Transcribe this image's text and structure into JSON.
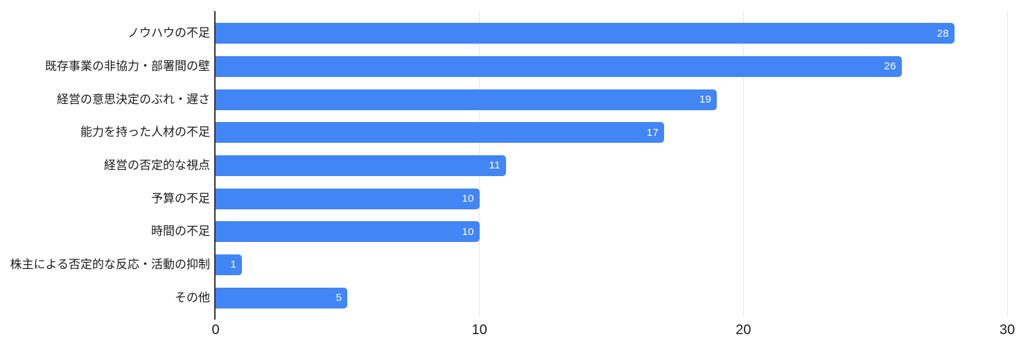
{
  "chart_data": {
    "type": "bar",
    "orientation": "horizontal",
    "title": "",
    "xlabel": "",
    "ylabel": "",
    "categories": [
      "ノウハウの不足",
      "既存事業の非協力・部署間の壁",
      "経営の意思決定のぶれ・遅さ",
      "能力を持った人材の不足",
      "経営の否定的な視点",
      "予算の不足",
      "時間の不足",
      "株主による否定的な反応・活動の抑制",
      "その他"
    ],
    "values": [
      28,
      26,
      19,
      17,
      11,
      10,
      10,
      1,
      5
    ],
    "x_ticks": [
      0,
      10,
      20,
      30
    ],
    "xlim": [
      0,
      30
    ],
    "grid": true,
    "legend": "none",
    "colors": {
      "bar": "#4285f4",
      "value_label": "#ffffff",
      "gridline": "#e6e6e6",
      "zero_axis_line": "#333333",
      "text": "#1b1b1b",
      "background": "#ffffff"
    }
  }
}
